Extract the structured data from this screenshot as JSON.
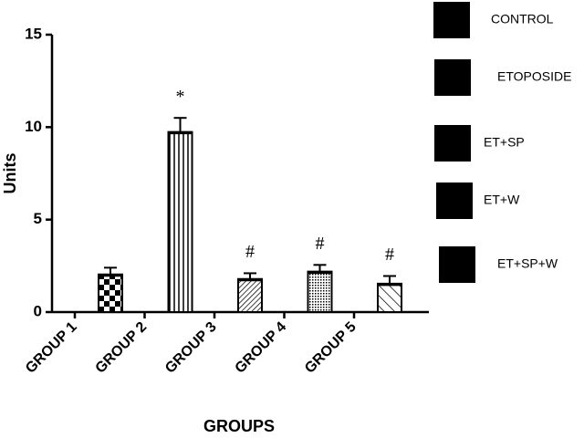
{
  "chart_data": {
    "type": "bar",
    "categories": [
      "GROUP 1",
      "GROUP 2",
      "GROUP 3",
      "GROUP 4",
      "GROUP 5"
    ],
    "values": [
      2.0,
      9.7,
      1.75,
      2.15,
      1.5
    ],
    "errors": [
      0.4,
      0.8,
      0.35,
      0.4,
      0.45
    ],
    "annotations": [
      null,
      "*",
      "#",
      "#",
      "#"
    ],
    "legend": [
      "CONTROL",
      "ETOPOSIDE",
      "ET+SP",
      "ET+W",
      "ET+SP+W"
    ],
    "color": "#000000",
    "xlabel": "GROUPS",
    "ylabel": "Units",
    "ylim": [
      0,
      15
    ],
    "yticks": [
      0,
      5,
      10,
      15
    ],
    "grid": false
  }
}
